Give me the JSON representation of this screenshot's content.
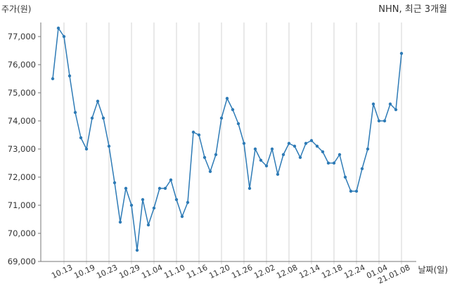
{
  "chart_data": {
    "type": "line",
    "title": "NHN, 최근 3개월",
    "ylabel": "주가(원)",
    "xlabel": "날짜(일)",
    "x": [
      "10.08",
      "10.12",
      "10.13",
      "10.14",
      "10.15",
      "10.16",
      "10.19",
      "10.20",
      "10.21",
      "10.22",
      "10.23",
      "10.26",
      "10.27",
      "10.28",
      "10.29",
      "10.30",
      "11.02",
      "11.03",
      "11.04",
      "11.05",
      "11.06",
      "11.09",
      "11.10",
      "11.11",
      "11.12",
      "11.13",
      "11.16",
      "11.17",
      "11.18",
      "11.19",
      "11.20",
      "11.23",
      "11.24",
      "11.25",
      "11.26",
      "11.27",
      "11.30",
      "12.01",
      "12.02",
      "12.03",
      "12.04",
      "12.07",
      "12.08",
      "12.09",
      "12.10",
      "12.11",
      "12.14",
      "12.15",
      "12.16",
      "12.17",
      "12.18",
      "12.21",
      "12.22",
      "12.23",
      "12.24",
      "12.28",
      "12.29",
      "12.30",
      "01.04",
      "01.05",
      "01.06",
      "01.07",
      "01.08"
    ],
    "y": [
      75500,
      77300,
      77000,
      75600,
      74300,
      73400,
      73000,
      74100,
      74700,
      74100,
      73100,
      71800,
      70400,
      71600,
      71000,
      69400,
      71200,
      70300,
      70900,
      71600,
      71600,
      71900,
      71200,
      70600,
      71100,
      73600,
      73500,
      72700,
      72200,
      72800,
      74100,
      74800,
      74400,
      73900,
      73200,
      71600,
      73000,
      72600,
      72400,
      73000,
      72100,
      72800,
      73200,
      73100,
      72700,
      73200,
      73300,
      73100,
      72900,
      72500,
      72500,
      72800,
      72000,
      71500,
      71500,
      72300,
      73000,
      74600,
      74000,
      74000,
      74600,
      74400,
      76400
    ],
    "x_tick_labels": [
      "10.13",
      "10.19",
      "10.23",
      "10.29",
      "11.04",
      "11.10",
      "11.16",
      "11.20",
      "11.26",
      "12.02",
      "12.08",
      "12.14",
      "12.18",
      "12.24",
      "01.04",
      "21.01.08"
    ],
    "y_ticks": [
      69000,
      70000,
      71000,
      72000,
      73000,
      74000,
      75000,
      76000,
      77000
    ],
    "y_tick_labels": [
      "69,000",
      "70,000",
      "71,000",
      "72,000",
      "73,000",
      "74,000",
      "75,000",
      "76,000",
      "77,000"
    ],
    "ylim": [
      69000,
      77500
    ],
    "grid": "vertical",
    "color": "#2e7bb6"
  }
}
